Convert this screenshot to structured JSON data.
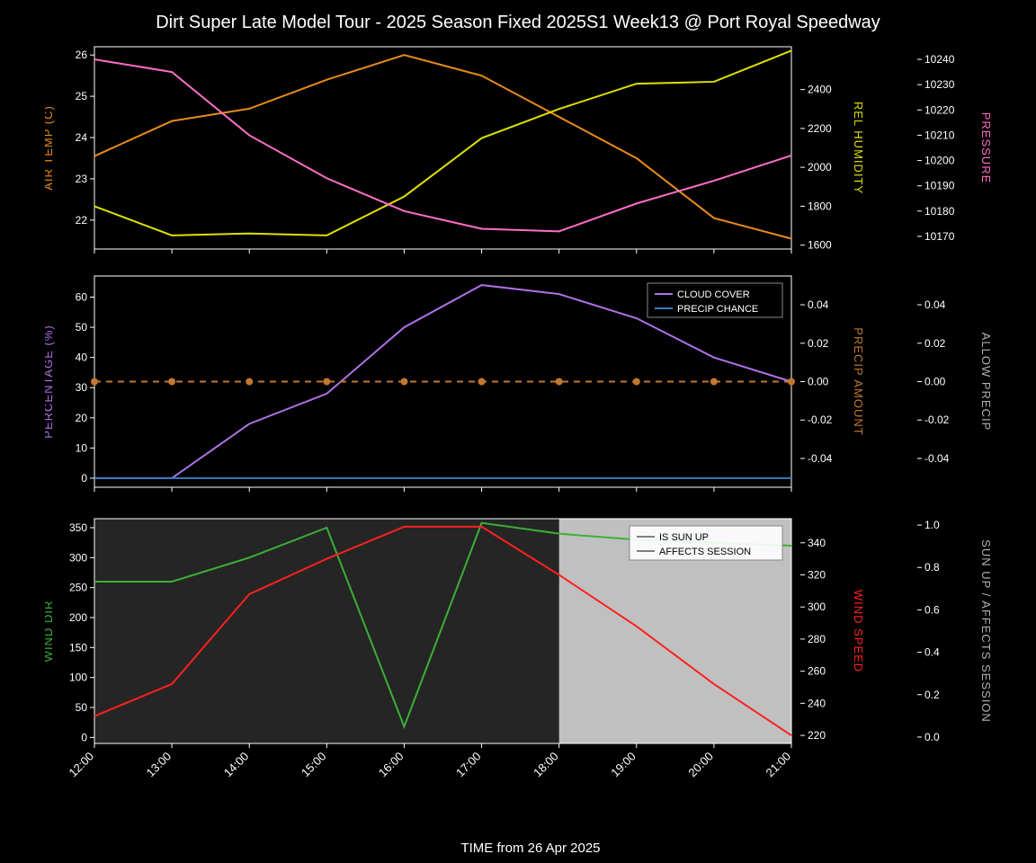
{
  "title": "Dirt Super Late Model Tour - 2025 Season Fixed 2025S1 Week13 @ Port Royal Speedway",
  "xlabel": "TIME from 26 Apr 2025",
  "x_ticks": [
    "12:00",
    "13:00",
    "14:00",
    "15:00",
    "16:00",
    "17:00",
    "18:00",
    "19:00",
    "20:00",
    "21:00"
  ],
  "background": "#000000",
  "fonts": {
    "title_size": 20,
    "label_size": 13,
    "tick_size": 12
  },
  "panel1": {
    "series": {
      "air_temp": {
        "label": "AIR TEMP (C)",
        "position": "left",
        "color": "#e88b1a",
        "values": [
          23.55,
          24.4,
          24.7,
          25.4,
          26.0,
          25.5,
          24.5,
          23.5,
          22.05,
          21.55
        ],
        "yticks": [
          22,
          23,
          24,
          25,
          26
        ],
        "ylim": [
          21.3,
          26.2
        ]
      },
      "rel_humidity": {
        "label": "REL HUMIDITY",
        "position": "right1",
        "color": "#e0e000",
        "values": [
          1800,
          1650,
          1660,
          1650,
          1850,
          2150,
          2300,
          2430,
          2440,
          2600
        ],
        "yticks": [
          1600,
          1800,
          2000,
          2200,
          2400
        ],
        "ylim": [
          1580,
          2620
        ]
      },
      "pressure": {
        "label": "PRESSURE",
        "position": "right2",
        "color": "#ff6ec7",
        "values": [
          10240,
          10235,
          10210,
          10193,
          10180,
          10173,
          10172,
          10183,
          10192,
          10202
        ],
        "yticks": [
          10170,
          10180,
          10190,
          10200,
          10210,
          10220,
          10230,
          10240
        ],
        "ylim": [
          10165,
          10245
        ]
      }
    }
  },
  "panel2": {
    "series": {
      "percentage": {
        "label": "PERCENTAGE (%)",
        "position": "left",
        "color": "#b070e8",
        "yticks": [
          0,
          10,
          20,
          30,
          40,
          50,
          60
        ],
        "ylim": [
          -3,
          67
        ]
      },
      "cloud_cover": {
        "label": "CLOUD COVER",
        "color": "#b070e8",
        "values": [
          0,
          0,
          18,
          28,
          50,
          64,
          61,
          53,
          40,
          32
        ]
      },
      "precip_chance": {
        "label": "PRECIP CHANCE",
        "color": "#3a7cc0",
        "values": [
          0,
          0,
          0,
          0,
          0,
          0,
          0,
          0,
          0,
          0
        ]
      },
      "precip_amount": {
        "label": "PRECIP AMOUNT",
        "position": "right1",
        "color": "#c27830",
        "values": [
          0,
          0,
          0,
          0,
          0,
          0,
          0,
          0,
          0,
          0
        ],
        "yticks": [
          -0.04,
          -0.02,
          0.0,
          0.02,
          0.04
        ],
        "ylim": [
          -0.055,
          0.055
        ],
        "dashed": true,
        "markers": true
      },
      "allow_precip": {
        "label": "ALLOW PRECIP",
        "position": "right2",
        "color": "#b0b0b0",
        "yticks": [
          -0.04,
          -0.02,
          0.0,
          0.02,
          0.04
        ],
        "ylim": [
          -0.055,
          0.055
        ]
      }
    },
    "legend": [
      "CLOUD COVER",
      "PRECIP CHANCE"
    ]
  },
  "panel3": {
    "series": {
      "wind_dir": {
        "label": "WIND DIR",
        "position": "left",
        "color": "#3cb038",
        "values": [
          260,
          260,
          300,
          350,
          18,
          358,
          340,
          330,
          325,
          320
        ],
        "yticks": [
          0,
          50,
          100,
          150,
          200,
          250,
          300,
          350
        ],
        "ylim": [
          -10,
          365
        ]
      },
      "wind_speed": {
        "label": "WIND SPEED",
        "position": "right1",
        "color": "#ff2020",
        "values": [
          232,
          252,
          308,
          330,
          350,
          350,
          320,
          288,
          252,
          220
        ],
        "yticks": [
          220,
          240,
          260,
          280,
          300,
          320,
          340
        ],
        "ylim": [
          215,
          355
        ]
      },
      "sun": {
        "label": "SUN UP / AFFECTS SESSION",
        "position": "right2",
        "color": "#b0b0b0",
        "yticks": [
          0.0,
          0.2,
          0.4,
          0.6,
          0.8,
          1.0
        ],
        "ylim": [
          -0.03,
          1.03
        ]
      },
      "is_sun_up": {
        "values": [
          1,
          1,
          1,
          1,
          1,
          1,
          1,
          1,
          1,
          1
        ]
      },
      "affects_session": {
        "values": [
          1,
          1,
          1,
          1,
          1,
          1,
          0,
          0,
          0,
          0
        ]
      }
    },
    "shading": {
      "dark_region": [
        0,
        6
      ],
      "light_region": [
        6,
        9
      ],
      "dark_color": "#252525",
      "light_color": "#c0c0c0"
    },
    "legend": [
      "IS SUN UP",
      "AFFECTS SESSION"
    ]
  }
}
